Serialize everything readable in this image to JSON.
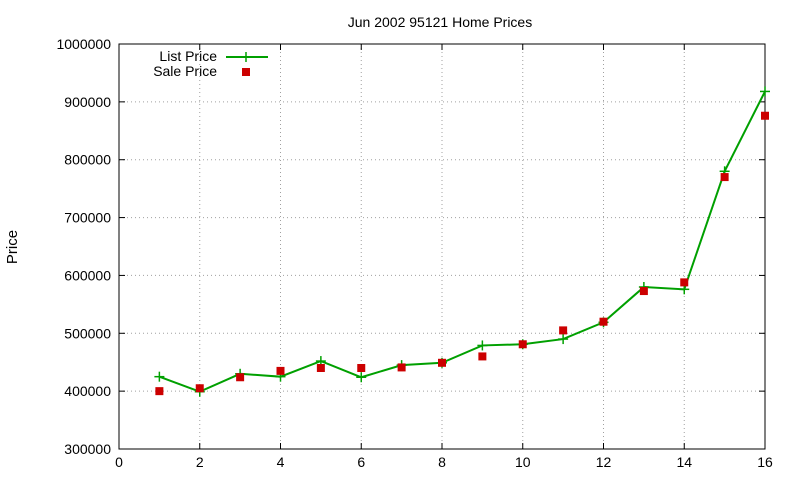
{
  "chart_data": {
    "type": "line",
    "title": "Jun 2002 95121 Home Prices",
    "xlabel": "",
    "ylabel": "Price",
    "xlim": [
      0,
      16
    ],
    "ylim": [
      300000,
      1000000
    ],
    "xticks": [
      0,
      2,
      4,
      6,
      8,
      10,
      12,
      14,
      16
    ],
    "yticks": [
      300000,
      400000,
      500000,
      600000,
      700000,
      800000,
      900000,
      1000000
    ],
    "grid": true,
    "legend_position": "top-left",
    "series": [
      {
        "name": "List Price",
        "style": "line+cross",
        "color": "#00a000",
        "x": [
          1,
          2,
          3,
          4,
          5,
          6,
          7,
          8,
          9,
          10,
          11,
          12,
          13,
          14,
          15,
          16
        ],
        "y": [
          425000,
          399000,
          430000,
          425000,
          452000,
          424000,
          445000,
          449000,
          479000,
          481000,
          490000,
          519000,
          580000,
          576000,
          780000,
          918000
        ]
      },
      {
        "name": "Sale Price",
        "style": "points-square",
        "color": "#cc0000",
        "x": [
          1,
          2,
          3,
          4,
          5,
          6,
          7,
          8,
          9,
          10,
          11,
          12,
          13,
          14,
          15,
          16
        ],
        "y": [
          400000,
          405000,
          424000,
          435000,
          440000,
          440000,
          441000,
          449000,
          460000,
          481000,
          505000,
          520000,
          573000,
          588000,
          770000,
          876000
        ]
      }
    ]
  }
}
